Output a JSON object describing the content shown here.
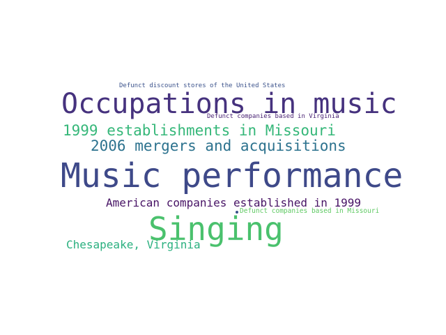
{
  "word_cloud": {
    "words": [
      {
        "text": "Defunct discount stores of the United States",
        "color": "#3b528b"
      },
      {
        "text": "Occupations in music",
        "color": "#46327e"
      },
      {
        "text": "Defunct companies based in Virginia",
        "color": "#482173"
      },
      {
        "text": "1999 establishments in Missouri",
        "color": "#35b779"
      },
      {
        "text": "2006 mergers and acquisitions",
        "color": "#2c728e"
      },
      {
        "text": "Music performance",
        "color": "#3e4989"
      },
      {
        "text": "American companies established in 1999",
        "color": "#471365"
      },
      {
        "text": "Defunct companies based in Missouri",
        "color": "#5ec962"
      },
      {
        "text": "Singing",
        "color": "#4ac16d"
      },
      {
        "text": "Chesapeake, Virginia",
        "color": "#2ab07f"
      }
    ]
  }
}
